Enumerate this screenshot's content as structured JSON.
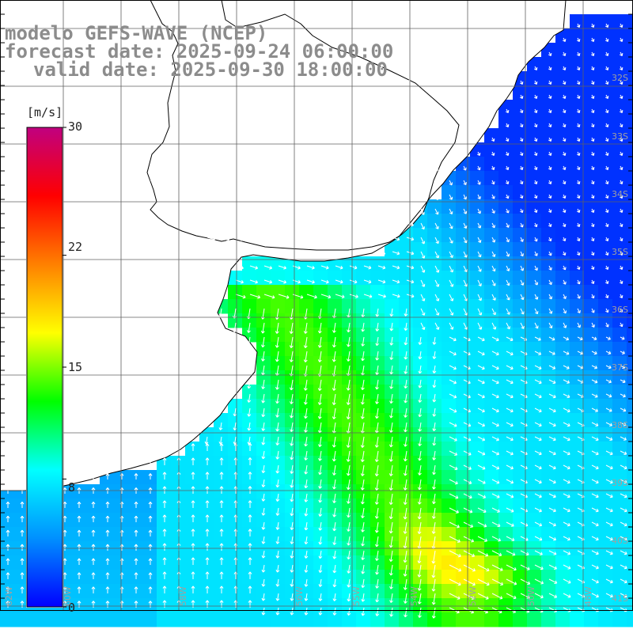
{
  "header": {
    "model_line": "modelo GEFS-WAVE (NCEP)",
    "forecast_line": "forecast date: 2025-09-24 06:00:00",
    "valid_line": "valid date: 2025-09-30 18:00:00"
  },
  "colorbar": {
    "unit": "[m/s]",
    "ticks": [
      {
        "value": 30,
        "label": "30"
      },
      {
        "value": 22,
        "label": "22"
      },
      {
        "value": 15,
        "label": "15"
      },
      {
        "value": 8,
        "label": "8"
      },
      {
        "value": 0,
        "label": "0"
      }
    ],
    "min": 0,
    "max": 30,
    "colors": [
      "#0000ff",
      "#0090ff",
      "#00ffff",
      "#00ff00",
      "#ffff00",
      "#ff8000",
      "#ff0000",
      "#c00080"
    ]
  },
  "lat_labels": [
    "32S",
    "33S",
    "34S",
    "35S",
    "36S",
    "37S",
    "38S",
    "39S",
    "40S",
    "41S"
  ],
  "lon_labels": [
    "62W",
    "60W",
    "58W",
    "56W",
    "55W",
    "54W",
    "52W",
    "50W",
    "48W",
    "46W",
    "44W"
  ],
  "colors": {
    "land": "#ffffff",
    "coast": "#000000",
    "grid": "#606060",
    "arrow": "#ffffff",
    "title": "#8c8c8c"
  }
}
